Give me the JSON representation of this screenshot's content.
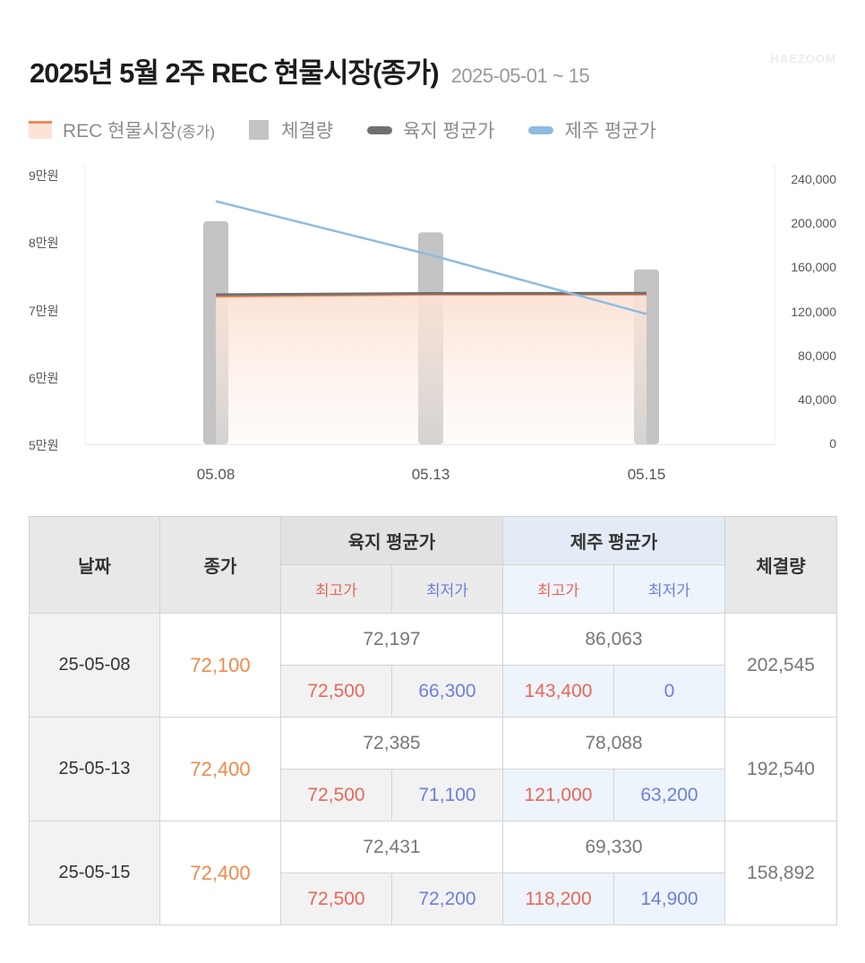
{
  "header": {
    "title": "2025년 5월 2주 REC 현물시장(종가)",
    "date_range": "2025-05-01 ~ 15",
    "watermark": "HAEZOOM"
  },
  "legend": {
    "items": [
      {
        "label": "REC 현물시장",
        "suffix": "(종가)",
        "icon": "area-swatch-icon",
        "color": "#f08a55"
      },
      {
        "label": "체결량",
        "icon": "bar-swatch-icon",
        "color": "#c4c4c4"
      },
      {
        "label": "육지 평균가",
        "icon": "line-swatch-icon",
        "color": "#707070"
      },
      {
        "label": "제주 평균가",
        "icon": "line-swatch-icon",
        "color": "#8fbbdf"
      }
    ]
  },
  "chart_data": {
    "type": "bar+line+area",
    "categories": [
      "05.08",
      "05.13",
      "05.15"
    ],
    "left_axis": {
      "ticks": [
        "9만원",
        "8만원",
        "7만원",
        "6만원",
        "5만원"
      ],
      "range": [
        50000,
        90000
      ]
    },
    "right_axis": {
      "ticks": [
        "240,000",
        "200,000",
        "160,000",
        "120,000",
        "80,000",
        "40,000",
        "0"
      ],
      "range": [
        0,
        240000
      ]
    },
    "series": [
      {
        "name": "REC 현물시장(종가)",
        "type": "area",
        "axis": "left",
        "color": "#f08a55",
        "values": [
          72100,
          72400,
          72400
        ]
      },
      {
        "name": "체결량",
        "type": "bar",
        "axis": "right",
        "color": "#c4c4c4",
        "values": [
          202545,
          192540,
          158892
        ]
      },
      {
        "name": "육지 평균가",
        "type": "line",
        "axis": "left",
        "color": "#707070",
        "values": [
          72197,
          72385,
          72431
        ]
      },
      {
        "name": "제주 평균가",
        "type": "line",
        "axis": "left",
        "color": "#8fbbdf",
        "values": [
          86063,
          78088,
          69330
        ]
      }
    ],
    "grid": false,
    "legend_position": "top"
  },
  "table": {
    "headers": {
      "date": "날짜",
      "close": "종가",
      "land_avg": "육지 평균가",
      "jeju_avg": "제주 평균가",
      "volume": "체결량",
      "high": "최고가",
      "low": "최저가"
    },
    "rows": [
      {
        "date": "25-05-08",
        "close": "72,100",
        "land_avg": "72,197",
        "land_high": "72,500",
        "land_low": "66,300",
        "jeju_avg": "86,063",
        "jeju_high": "143,400",
        "jeju_low": "0",
        "volume": "202,545"
      },
      {
        "date": "25-05-13",
        "close": "72,400",
        "land_avg": "72,385",
        "land_high": "72,500",
        "land_low": "71,100",
        "jeju_avg": "78,088",
        "jeju_high": "121,000",
        "jeju_low": "63,200",
        "volume": "192,540"
      },
      {
        "date": "25-05-15",
        "close": "72,400",
        "land_avg": "72,431",
        "land_high": "72,500",
        "land_low": "72,200",
        "jeju_avg": "69,330",
        "jeju_high": "118,200",
        "jeju_low": "14,900",
        "volume": "158,892"
      }
    ]
  }
}
